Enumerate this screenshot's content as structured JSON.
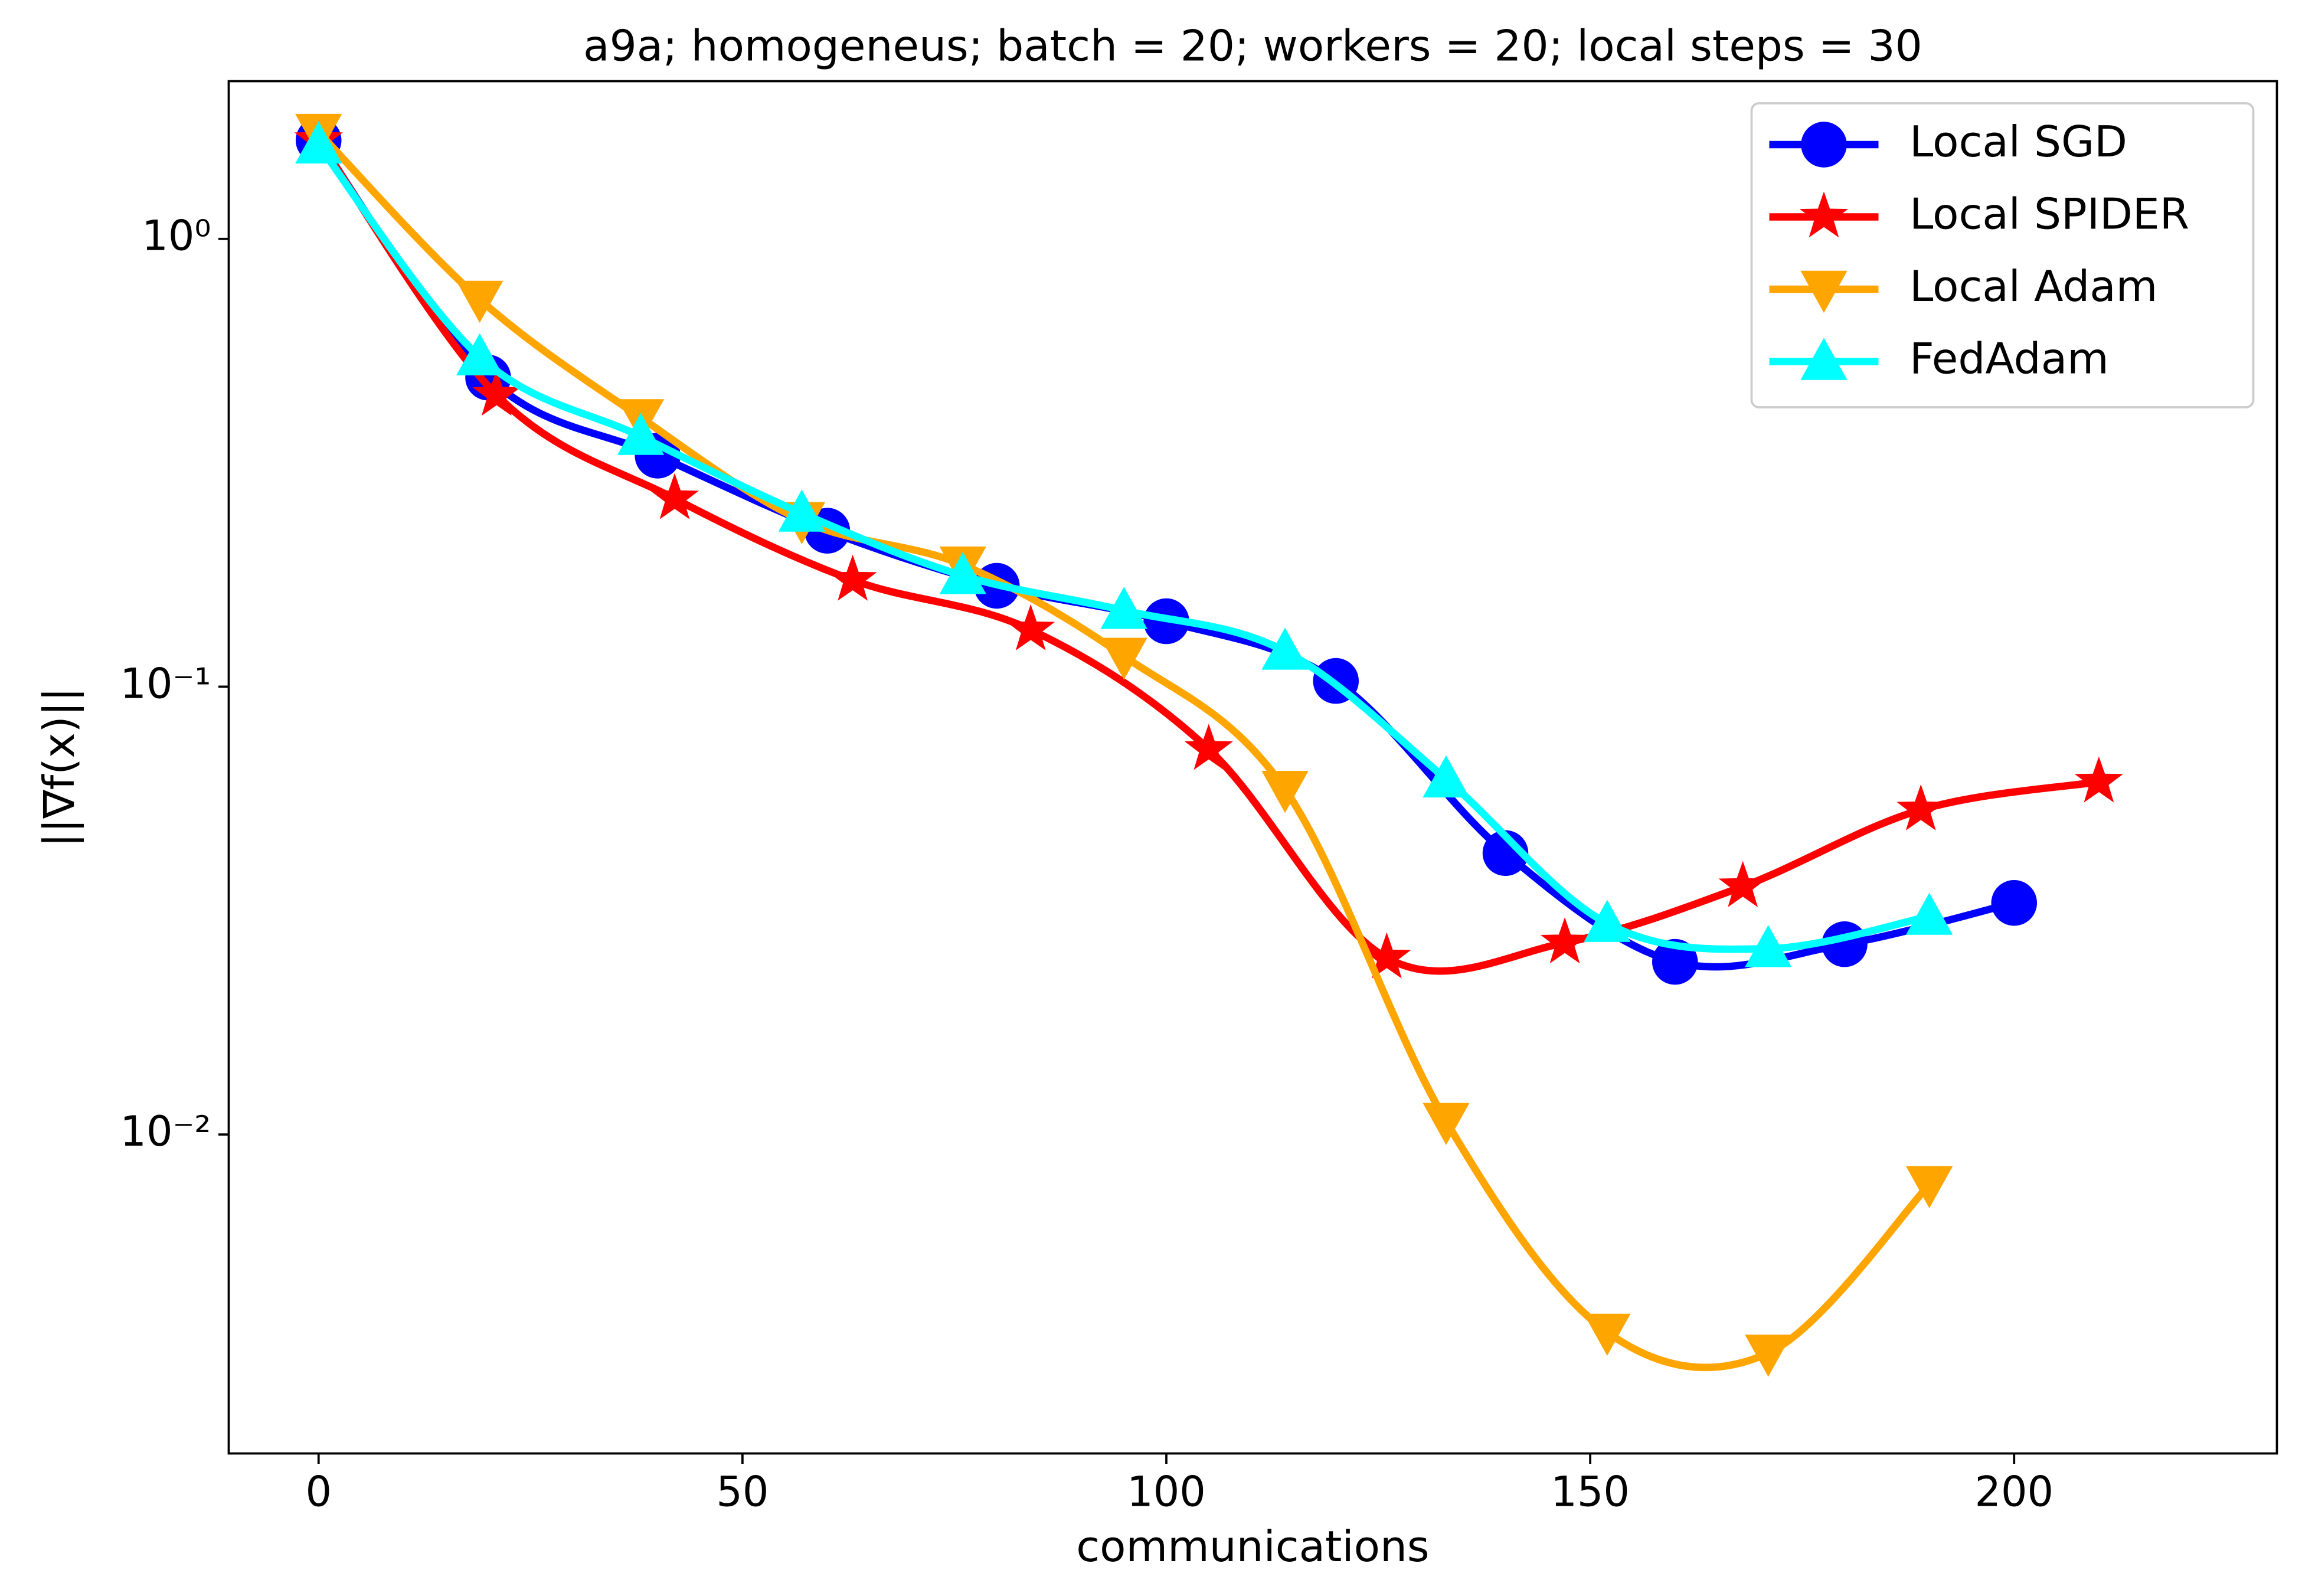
{
  "chart_data": {
    "type": "line",
    "title": "a9a; homogeneus; batch = 20; workers = 20; local steps = 30",
    "xlabel": "communications",
    "ylabel": "||∇f(x)||",
    "xlim": [
      -10.6,
      231
    ],
    "xticks": [
      0,
      50,
      100,
      150,
      200
    ],
    "ylim": [
      0.00194,
      2.25
    ],
    "log_y": true,
    "yticks": [
      {
        "value": 1,
        "label": "10⁰"
      },
      {
        "value": 0.1,
        "label": "10⁻¹"
      },
      {
        "value": 0.01,
        "label": "10⁻²"
      }
    ],
    "legend": "upper right",
    "series": [
      {
        "name": "Local SGD",
        "color": "#0000ff",
        "marker": "circle",
        "x": [
          0,
          20,
          40,
          60,
          80,
          100,
          120,
          140,
          160,
          180,
          200
        ],
        "values": [
          1.66,
          0.49,
          0.328,
          0.223,
          0.168,
          0.14,
          0.103,
          0.0425,
          0.0243,
          0.0266,
          0.0329
        ]
      },
      {
        "name": "Local SPIDER",
        "color": "#ff0000",
        "marker": "star",
        "x": [
          0,
          21,
          42,
          63,
          84,
          105,
          126,
          147,
          168,
          189,
          210
        ],
        "values": [
          1.66,
          0.448,
          0.263,
          0.173,
          0.134,
          0.0725,
          0.0248,
          0.0268,
          0.0358,
          0.0531,
          0.0613
        ]
      },
      {
        "name": "Local Adam",
        "color": "#ffa500",
        "marker": "triangle-down",
        "x": [
          0,
          19,
          38,
          57,
          76,
          95,
          114,
          133,
          152,
          171,
          190
        ],
        "values": [
          1.73,
          0.733,
          0.399,
          0.235,
          0.187,
          0.117,
          0.059,
          0.0107,
          0.00362,
          0.00325,
          0.00773
        ]
      },
      {
        "name": "FedAdam",
        "color": "#00ffff",
        "marker": "triangle-up",
        "x": [
          0,
          19,
          38,
          57,
          76,
          95,
          114,
          133,
          152,
          171,
          190
        ],
        "values": [
          1.62,
          0.545,
          0.362,
          0.244,
          0.177,
          0.148,
          0.12,
          0.0622,
          0.0296,
          0.026,
          0.0307
        ]
      }
    ]
  }
}
